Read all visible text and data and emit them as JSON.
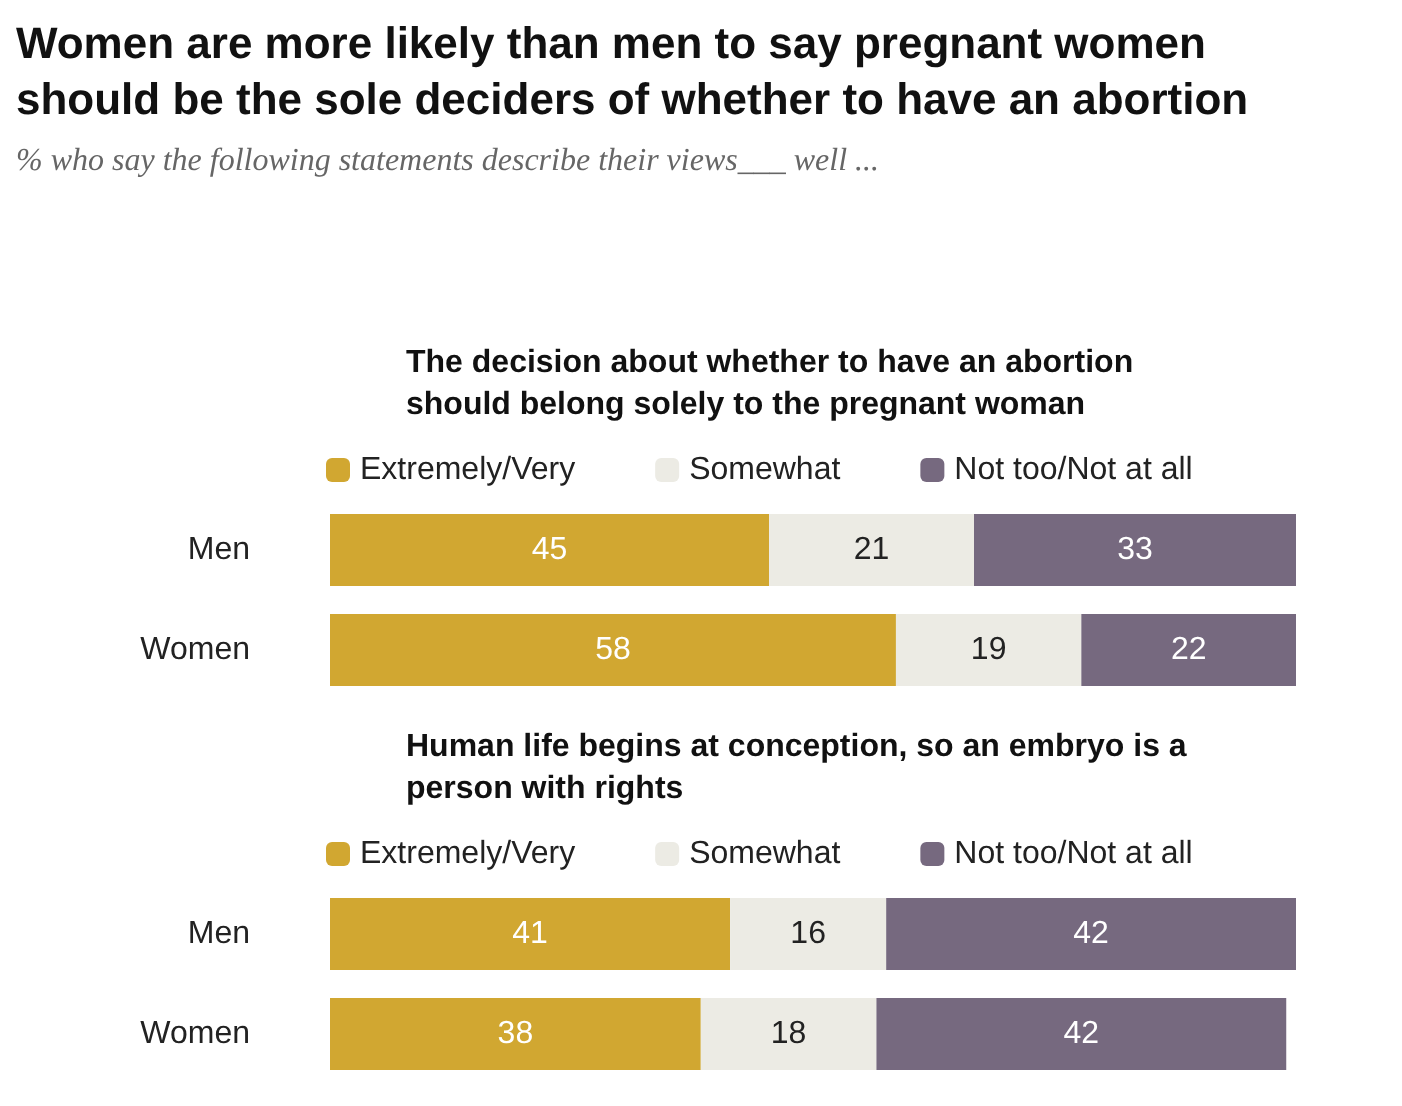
{
  "chart_data": [
    {
      "type": "other",
      "title": "Women are more likely than men to say pregnant women should be the sole deciders of whether to have an abortion",
      "subtitle": "% who say the following statements describe their views___ well ..."
    },
    {
      "type": "bar",
      "orientation": "horizontal",
      "stacked": true,
      "data_labels": true,
      "legend": "top",
      "title": "The decision about whether to have an abortion should belong solely to the pregnant woman",
      "categories": [
        "Men",
        "Women"
      ],
      "series": [
        {
          "name": "Extremely/Very",
          "color": "#d1a731",
          "values": [
            45,
            58
          ]
        },
        {
          "name": "Somewhat",
          "color": "#ecebe4",
          "values": [
            21,
            19
          ]
        },
        {
          "name": "Not too/Not at all",
          "color": "#76697f",
          "values": [
            33,
            22
          ]
        }
      ]
    },
    {
      "type": "bar",
      "orientation": "horizontal",
      "stacked": true,
      "data_labels": true,
      "legend": "top",
      "title": "Human life begins at conception, so an embryo is a person with rights",
      "categories": [
        "Men",
        "Women"
      ],
      "series": [
        {
          "name": "Extremely/Very",
          "color": "#d1a731",
          "values": [
            41,
            38
          ]
        },
        {
          "name": "Somewhat",
          "color": "#ecebe4",
          "values": [
            16,
            18
          ]
        },
        {
          "name": "Not too/Not at all",
          "color": "#76697f",
          "values": [
            42,
            42
          ]
        }
      ]
    }
  ]
}
